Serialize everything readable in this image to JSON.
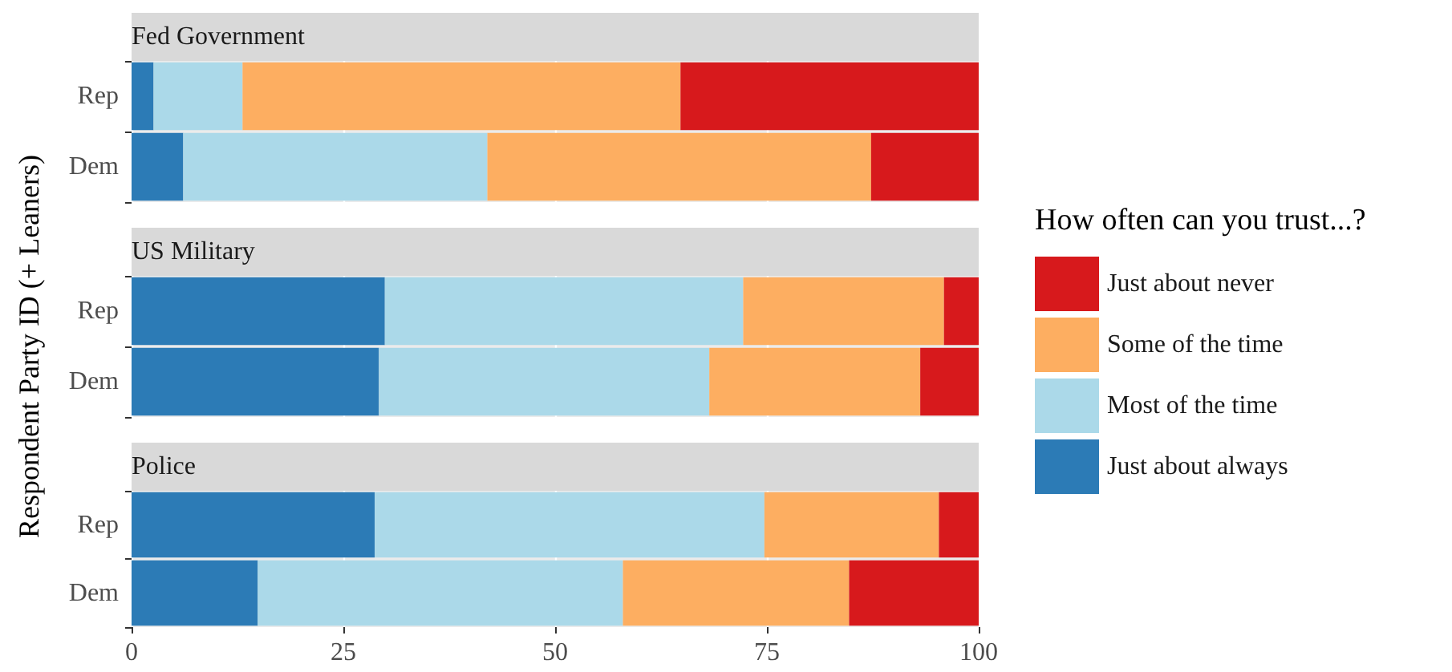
{
  "chart_data": [
    {
      "type": "bar",
      "title": "Fed Government",
      "orientation": "horizontal",
      "stacked": true,
      "categories": [
        "Rep",
        "Dem"
      ],
      "xlim": [
        0,
        100
      ],
      "xticks": [
        0,
        25,
        50,
        75,
        100
      ],
      "grid": true,
      "tick_labels": "y",
      "legend": false,
      "series": [
        {
          "color": "#2c7bb6",
          "values": [
            2.6,
            6.1
          ]
        },
        {
          "color": "#abd9e9",
          "values": [
            10.5,
            35.9
          ]
        },
        {
          "color": "#fdae61",
          "values": [
            51.7,
            45.3
          ]
        },
        {
          "color": "#d7191c",
          "values": [
            35.2,
            12.7
          ]
        }
      ]
    },
    {
      "type": "bar",
      "title": "US Military",
      "ylabel": "Respondent Party ID (+ Leaners)",
      "legend_title": "How often can you trust...?",
      "orientation": "horizontal",
      "stacked": true,
      "categories": [
        "Rep",
        "Dem"
      ],
      "xlim": [
        0,
        100
      ],
      "xticks": [
        0,
        25,
        50,
        75,
        100
      ],
      "grid": true,
      "tick_labels": "y",
      "legend": "right",
      "series": [
        {
          "name": "Just about always",
          "color": "#2c7bb6",
          "values": [
            29.9,
            29.2
          ]
        },
        {
          "name": "Most of the time",
          "color": "#abd9e9",
          "values": [
            42.3,
            39.0
          ]
        },
        {
          "name": "Some of the time",
          "color": "#fdae61",
          "values": [
            23.7,
            24.9
          ]
        },
        {
          "name": "Just about never",
          "color": "#d7191c",
          "values": [
            4.1,
            6.9
          ]
        }
      ]
    },
    {
      "type": "bar",
      "title": "Police",
      "orientation": "horizontal",
      "stacked": true,
      "categories": [
        "Rep",
        "Dem"
      ],
      "xlim": [
        0,
        100
      ],
      "xticks": [
        0,
        25,
        50,
        75,
        100
      ],
      "grid": true,
      "legend": false,
      "series": [
        {
          "color": "#2c7bb6",
          "values": [
            28.7,
            14.9
          ]
        },
        {
          "color": "#abd9e9",
          "values": [
            46.0,
            43.1
          ]
        },
        {
          "color": "#fdae61",
          "values": [
            20.6,
            26.7
          ]
        },
        {
          "color": "#d7191c",
          "values": [
            4.7,
            15.3
          ]
        }
      ]
    }
  ]
}
